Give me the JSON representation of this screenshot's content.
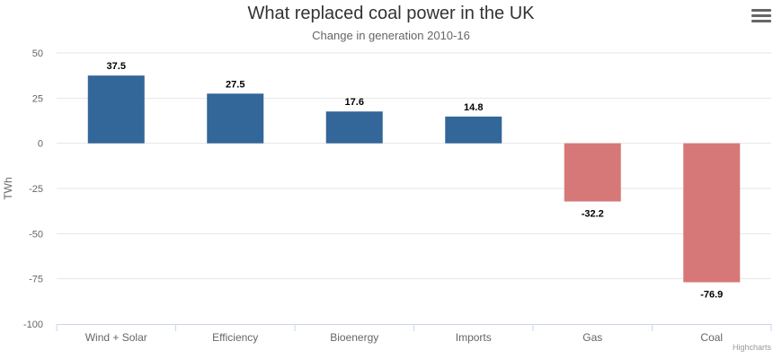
{
  "chart_data": {
    "type": "bar",
    "title": "What replaced coal power in the UK",
    "subtitle": "Change in generation 2010-16",
    "ylabel": "TWh",
    "xlabel": "",
    "categories": [
      "Wind + Solar",
      "Efficiency",
      "Bioenergy",
      "Imports",
      "Gas",
      "Coal"
    ],
    "values": [
      37.5,
      27.5,
      17.6,
      14.8,
      -32.2,
      -76.9
    ],
    "value_labels": [
      "37.5",
      "27.5",
      "17.6",
      "14.8",
      "-32.2",
      "-76.9"
    ],
    "ylim": [
      -100,
      50
    ],
    "yticks": [
      50,
      25,
      0,
      -25,
      -50,
      -75,
      -100
    ],
    "grid": true,
    "colors": {
      "positive": "#336699",
      "negative": "#d67877"
    }
  },
  "credits": "Highcharts",
  "menu": {
    "icon": "hamburger-menu-icon"
  }
}
